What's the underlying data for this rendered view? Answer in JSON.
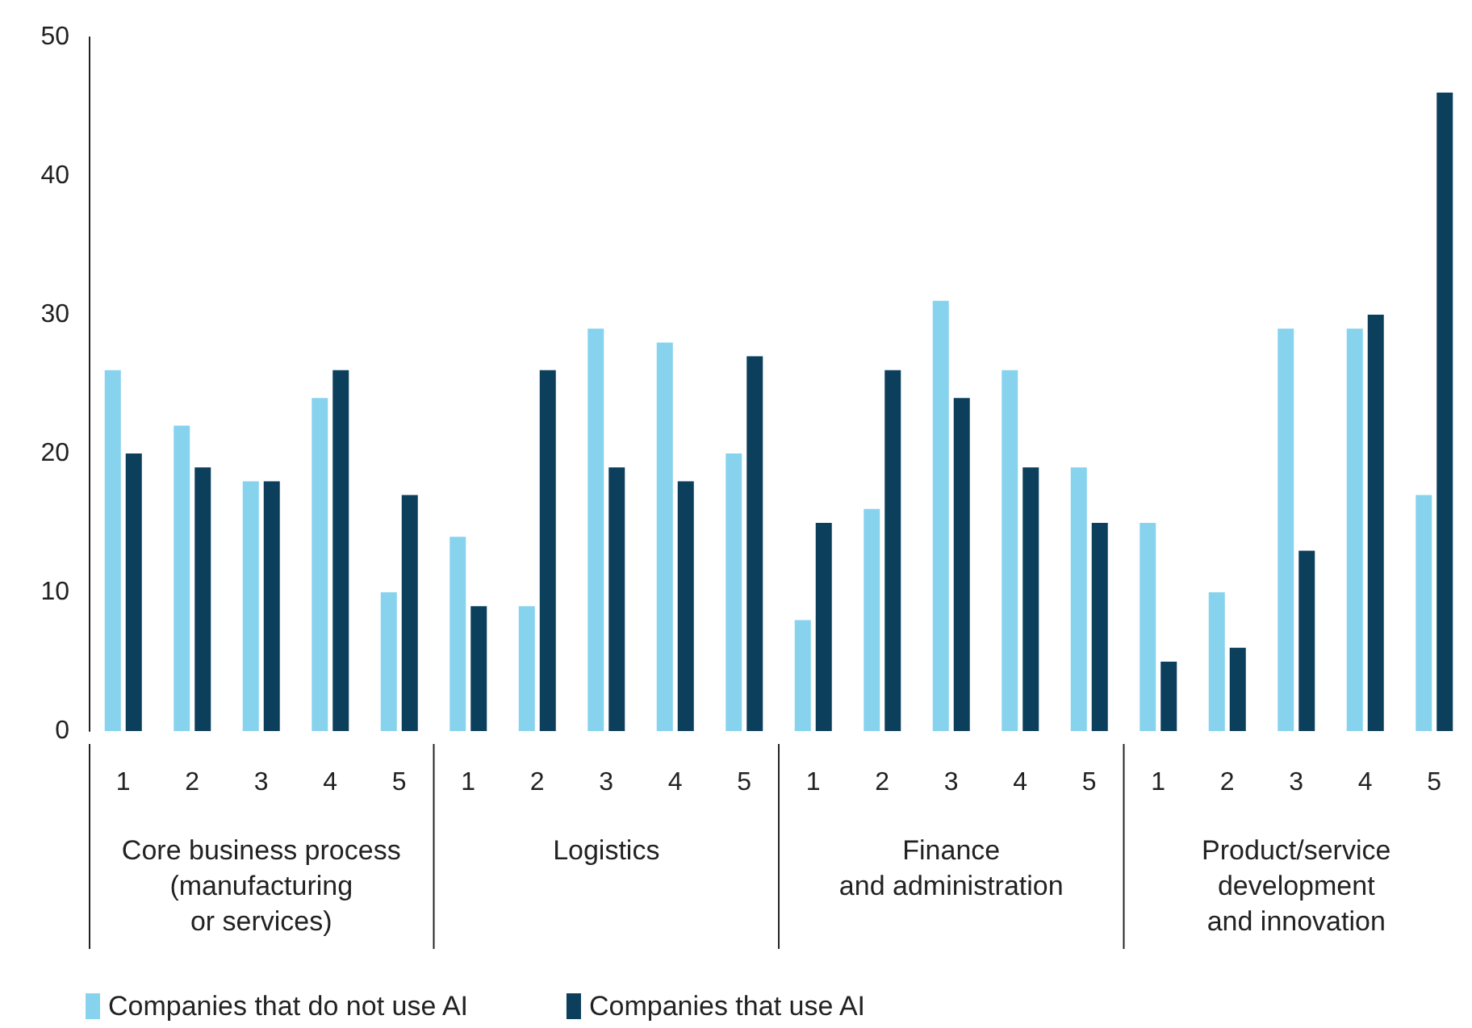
{
  "chart_data": {
    "type": "bar",
    "categories": [
      "1",
      "2",
      "3",
      "4",
      "5",
      "1",
      "2",
      "3",
      "4",
      "5",
      "1",
      "2",
      "3",
      "4",
      "5",
      "1",
      "2",
      "3",
      "4",
      "5"
    ],
    "series": [
      {
        "name": "Companies that do not use AI",
        "color": "#87d3ee",
        "values": [
          26,
          22,
          18,
          24,
          10,
          14,
          9,
          29,
          28,
          20,
          8,
          16,
          31,
          26,
          19,
          15,
          10,
          29,
          29,
          17
        ]
      },
      {
        "name": "Companies that use AI",
        "color": "#0b3f5c",
        "values": [
          20,
          19,
          18,
          26,
          17,
          9,
          26,
          19,
          18,
          27,
          15,
          26,
          24,
          19,
          15,
          5,
          6,
          13,
          30,
          46
        ]
      }
    ],
    "ylim": [
      0,
      50
    ],
    "yticks": [
      0,
      10,
      20,
      30,
      40,
      50
    ],
    "grid": false,
    "legend": "bottom left",
    "annotations": [
      "Core business process\n(manufacturing\nor services)",
      "Logistics",
      "Finance\nand administration",
      "Product/service\ndevelopment\nand innovation"
    ]
  }
}
